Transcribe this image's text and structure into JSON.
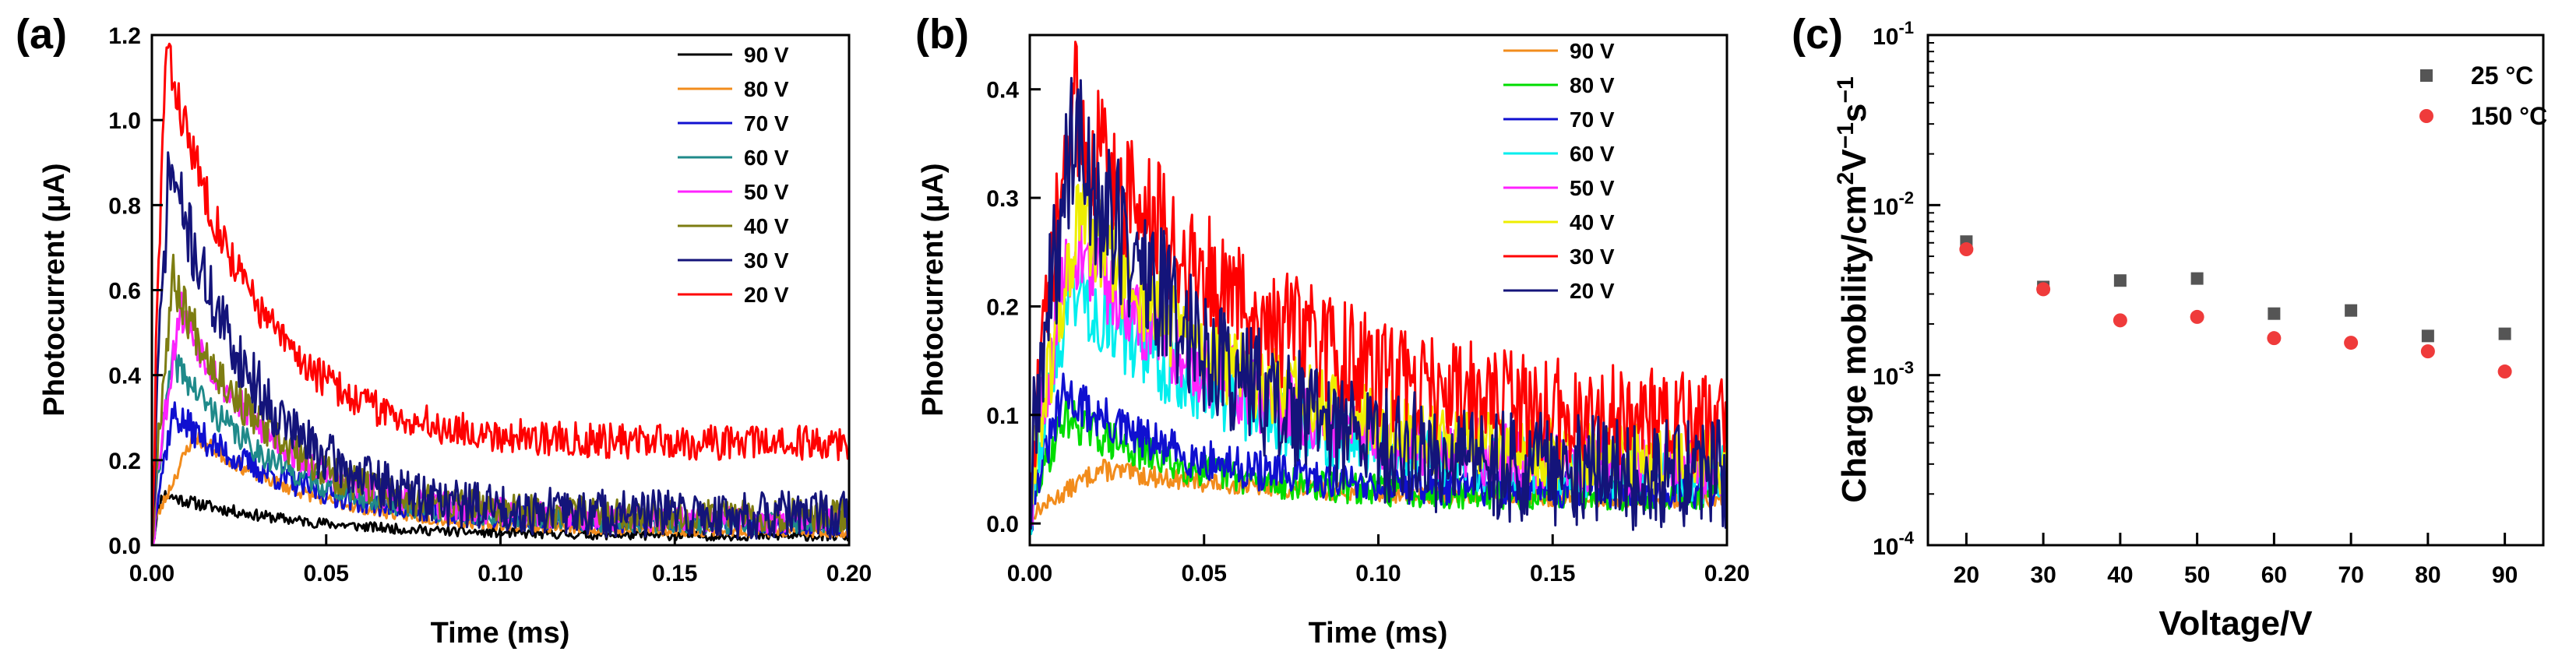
{
  "figure": {
    "panel_labels": [
      "(a)",
      "(b)",
      "(c)"
    ]
  },
  "chart_data": [
    {
      "id": "a",
      "type": "line",
      "panel_label": "(a)",
      "xlabel": "Time (ms)",
      "ylabel": "Photocurrent (μA)",
      "xlim": [
        0,
        0.2
      ],
      "ylim": [
        0,
        1.2
      ],
      "xticks": [
        0.0,
        0.05,
        0.1,
        0.15,
        0.2
      ],
      "xtick_labels": [
        "0.00",
        "0.05",
        "0.10",
        "0.15",
        "0.20"
      ],
      "yticks": [
        0.0,
        0.2,
        0.4,
        0.6,
        0.8,
        1.0,
        1.2
      ],
      "ytick_labels": [
        "0.0",
        "0.2",
        "0.4",
        "0.6",
        "0.8",
        "1.0",
        "1.2"
      ],
      "legend_position": "top-right",
      "series": [
        {
          "name": "90 V",
          "color": "#000000",
          "peak": 0.12,
          "t_peak": 0.003,
          "tail": 0.02,
          "tau": 0.04,
          "noise": 0.008,
          "seed": 11
        },
        {
          "name": "80 V",
          "color": "#f28c1c",
          "peak": 0.26,
          "t_peak": 0.012,
          "tail": 0.03,
          "tau": 0.035,
          "noise": 0.01,
          "seed": 23
        },
        {
          "name": "70 V",
          "color": "#1010d0",
          "peak": 0.31,
          "t_peak": 0.006,
          "tail": 0.05,
          "tau": 0.035,
          "noise": 0.02,
          "seed": 37
        },
        {
          "name": "60 V",
          "color": "#1f8a8a",
          "peak": 0.44,
          "t_peak": 0.006,
          "tail": 0.05,
          "tau": 0.03,
          "noise": 0.02,
          "seed": 41
        },
        {
          "name": "50 V",
          "color": "#ff22ff",
          "peak": 0.56,
          "t_peak": 0.008,
          "tail": 0.06,
          "tau": 0.028,
          "noise": 0.025,
          "seed": 53
        },
        {
          "name": "40 V",
          "color": "#7d7d12",
          "peak": 0.63,
          "t_peak": 0.006,
          "tail": 0.07,
          "tau": 0.026,
          "noise": 0.03,
          "seed": 67
        },
        {
          "name": "30 V",
          "color": "#14147a",
          "peak": 0.9,
          "t_peak": 0.005,
          "tail": 0.07,
          "tau": 0.025,
          "noise": 0.045,
          "seed": 71
        },
        {
          "name": "20 V",
          "color": "#ff0000",
          "peak": 1.17,
          "t_peak": 0.004,
          "tail": 0.24,
          "tau": 0.025,
          "noise": 0.03,
          "seed": 83
        }
      ]
    },
    {
      "id": "b",
      "type": "line",
      "panel_label": "(b)",
      "xlabel": "Time (ms)",
      "ylabel": "Photocurrent (μA)",
      "xlim": [
        0,
        0.2
      ],
      "ylim": [
        -0.02,
        0.45
      ],
      "xticks": [
        0.0,
        0.05,
        0.1,
        0.15,
        0.2
      ],
      "xtick_labels": [
        "0.00",
        "0.05",
        "0.10",
        "0.15",
        "0.20"
      ],
      "yticks": [
        0.0,
        0.1,
        0.2,
        0.3,
        0.4
      ],
      "ytick_labels": [
        "0.0",
        "0.1",
        "0.2",
        "0.3",
        "0.4"
      ],
      "legend_position": "top-right",
      "series": [
        {
          "name": "90 V",
          "color": "#f28c1c",
          "peak": 0.05,
          "t_peak": 0.02,
          "tail": 0.02,
          "tau": 0.06,
          "noise": 0.005,
          "seed": 13
        },
        {
          "name": "80 V",
          "color": "#00dd00",
          "peak": 0.1,
          "t_peak": 0.01,
          "tail": 0.025,
          "tau": 0.035,
          "noise": 0.01,
          "seed": 29
        },
        {
          "name": "70 V",
          "color": "#1010d0",
          "peak": 0.12,
          "t_peak": 0.01,
          "tail": 0.03,
          "tau": 0.035,
          "noise": 0.012,
          "seed": 31
        },
        {
          "name": "60 V",
          "color": "#00eeee",
          "peak": 0.22,
          "t_peak": 0.012,
          "tail": 0.04,
          "tau": 0.05,
          "noise": 0.02,
          "seed": 43
        },
        {
          "name": "50 V",
          "color": "#ff22ff",
          "peak": 0.26,
          "t_peak": 0.012,
          "tail": 0.045,
          "tau": 0.05,
          "noise": 0.022,
          "seed": 59
        },
        {
          "name": "40 V",
          "color": "#eeee00",
          "peak": 0.28,
          "t_peak": 0.014,
          "tail": 0.05,
          "tau": 0.05,
          "noise": 0.024,
          "seed": 61
        },
        {
          "name": "30 V",
          "color": "#ff0000",
          "peak": 0.38,
          "t_peak": 0.012,
          "tail": 0.08,
          "tau": 0.055,
          "noise": 0.035,
          "seed": 73
        },
        {
          "name": "20 V",
          "color": "#14147a",
          "peak": 0.36,
          "t_peak": 0.012,
          "tail": 0.04,
          "tau": 0.04,
          "noise": 0.04,
          "seed": 89
        }
      ]
    },
    {
      "id": "c",
      "type": "scatter",
      "panel_label": "(c)",
      "xlabel": "Voltage/V",
      "ylabel_prefix": "Charge mobility/cm",
      "ylabel_sup1": "2",
      "ylabel_mid": "V",
      "ylabel_sup2": "−1",
      "ylabel_mid2": "s",
      "ylabel_sup3": "−1",
      "yscale": "log",
      "xlim": [
        15,
        95
      ],
      "ylim": [
        0.0001,
        0.1
      ],
      "xticks": [
        20,
        30,
        40,
        50,
        60,
        70,
        80,
        90
      ],
      "xtick_labels": [
        "20",
        "30",
        "40",
        "50",
        "60",
        "70",
        "80",
        "90"
      ],
      "ytick_base": "10",
      "ytick_exps": [
        "-4",
        "-3",
        "-2",
        "-1"
      ],
      "legend_position": "top-right",
      "series": [
        {
          "name": "25 °C",
          "marker": "square",
          "color": "#555555",
          "x": [
            20,
            30,
            40,
            50,
            60,
            70,
            80,
            90
          ],
          "y": [
            0.0061,
            0.0033,
            0.0036,
            0.0037,
            0.0023,
            0.0024,
            0.0017,
            0.00175
          ]
        },
        {
          "name": "150 °C",
          "marker": "circle",
          "color": "#ef3b3b",
          "x": [
            20,
            30,
            40,
            50,
            60,
            70,
            80,
            90
          ],
          "y": [
            0.0055,
            0.0032,
            0.0021,
            0.0022,
            0.00165,
            0.00155,
            0.00138,
            0.00105
          ]
        }
      ]
    }
  ]
}
